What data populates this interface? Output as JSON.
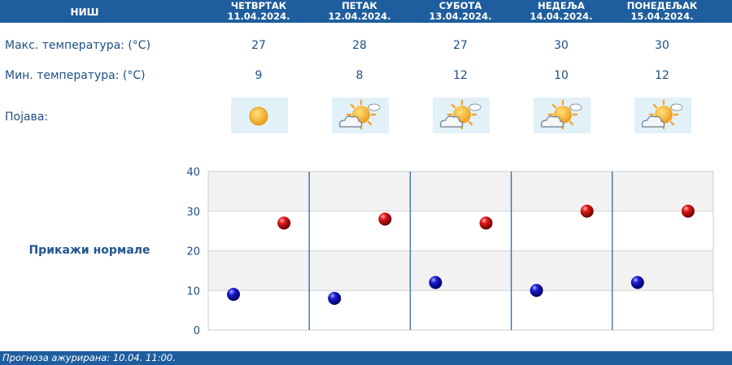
{
  "header": {
    "city": "НИШ",
    "days": [
      {
        "name": "ЧЕТВРТАК",
        "date": "11.04.2024.",
        "max": "27",
        "min": "9",
        "icon": "sun-icon"
      },
      {
        "name": "ПЕТАК",
        "date": "12.04.2024.",
        "max": "28",
        "min": "8",
        "icon": "sun-behind-clouds-icon"
      },
      {
        "name": "СУБОТА",
        "date": "13.04.2024.",
        "max": "27",
        "min": "12",
        "icon": "sun-behind-clouds-icon"
      },
      {
        "name": "НЕДЕЉА",
        "date": "14.04.2024.",
        "max": "30",
        "min": "10",
        "icon": "sun-behind-clouds-icon"
      },
      {
        "name": "ПОНЕДЕЉАК",
        "date": "15.04.2024.",
        "max": "30",
        "min": "12",
        "icon": "sun-behind-clouds-icon"
      }
    ]
  },
  "labels": {
    "max": "Макс. температура: (°C)",
    "min": "Мин. температура: (°C)",
    "phenomenon": "Појава:"
  },
  "normals_link": "Прикажи нормале",
  "chart_data": {
    "type": "scatter",
    "categories": [
      "11.04.2024.",
      "12.04.2024.",
      "13.04.2024.",
      "14.04.2024.",
      "15.04.2024."
    ],
    "series": [
      {
        "values": [
          27,
          28,
          27,
          30,
          30
        ],
        "color": "#cc0000"
      },
      {
        "values": [
          9,
          8,
          12,
          10,
          12
        ],
        "color": "#0000aa"
      }
    ],
    "y_ticks": [
      "0",
      "10",
      "20",
      "30",
      "40"
    ],
    "ylim": [
      0,
      40
    ],
    "grid": true
  },
  "footer": {
    "updated": "Прогноза ажурирана:  10.04. 11:00."
  },
  "colors": {
    "header_bg": "#1f5e9e",
    "text": "#1e4f86"
  }
}
